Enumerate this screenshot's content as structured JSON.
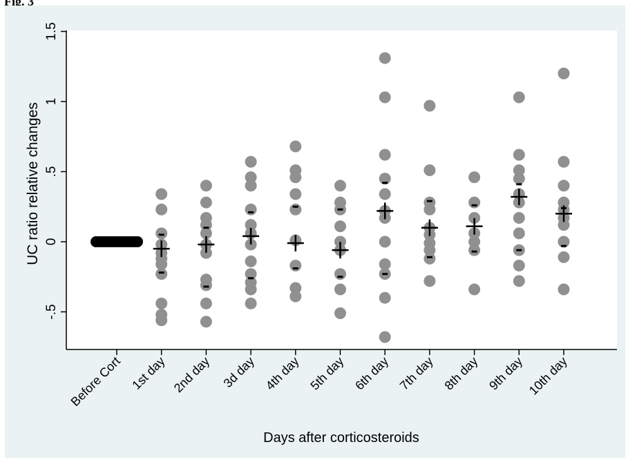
{
  "figure_label": "Fig. 3",
  "chart_data": {
    "type": "scatter",
    "title": "",
    "xlabel": "Days after corticosteroids",
    "ylabel": "UC ratio relative changes",
    "categories": [
      "Before Cort",
      "1st day",
      "2nd day",
      "3d day",
      "4th day",
      "5th day",
      "6th day",
      "7th day",
      "8th day",
      "9th day",
      "10th day"
    ],
    "ylim": [
      -0.75,
      1.5
    ],
    "yticks": [
      {
        "value": -0.5,
        "label": "-.5"
      },
      {
        "value": 0,
        "label": "0"
      },
      {
        "value": 0.5,
        "label": ".5"
      },
      {
        "value": 1,
        "label": "1"
      },
      {
        "value": 1.5,
        "label": "1.5"
      }
    ],
    "points": [
      [
        0,
        0,
        0,
        0,
        0,
        0,
        0,
        0,
        0,
        0,
        0,
        0,
        0,
        0
      ],
      [
        0.34,
        0.23,
        0.06,
        -0.02,
        -0.08,
        -0.12,
        -0.16,
        -0.23,
        -0.44,
        -0.52,
        -0.56
      ],
      [
        0.4,
        0.28,
        0.17,
        0.12,
        0.06,
        -0.02,
        -0.08,
        -0.27,
        -0.31,
        -0.44,
        -0.57
      ],
      [
        0.57,
        0.46,
        0.4,
        0.23,
        0.12,
        0.06,
        -0.02,
        -0.14,
        -0.23,
        -0.29,
        -0.34,
        -0.44
      ],
      [
        0.68,
        0.51,
        0.46,
        0.34,
        0.23,
        0.01,
        -0.17,
        -0.33,
        -0.39
      ],
      [
        0.4,
        0.28,
        0.23,
        0.11,
        0.0,
        -0.06,
        -0.23,
        -0.34,
        -0.51
      ],
      [
        1.31,
        1.03,
        0.62,
        0.45,
        0.34,
        0.22,
        0.17,
        0.0,
        -0.16,
        -0.23,
        -0.4,
        -0.68
      ],
      [
        0.97,
        0.51,
        0.28,
        0.23,
        0.1,
        0.05,
        -0.01,
        -0.06,
        -0.12,
        -0.28
      ],
      [
        0.46,
        0.28,
        0.17,
        0.06,
        0.0,
        -0.06,
        -0.34
      ],
      [
        1.03,
        0.62,
        0.51,
        0.45,
        0.34,
        0.28,
        0.17,
        0.06,
        -0.06,
        -0.17,
        -0.28
      ],
      [
        1.2,
        0.57,
        0.4,
        0.28,
        0.23,
        0.17,
        0.12,
        0.0,
        -0.11,
        -0.34
      ]
    ],
    "means": [
      0,
      -0.05,
      -0.02,
      0.04,
      -0.01,
      -0.06,
      0.22,
      0.1,
      0.11,
      0.32,
      0.2
    ],
    "ci": [
      [
        0,
        0
      ],
      [
        -0.22,
        0.05
      ],
      [
        -0.32,
        0.1
      ],
      [
        -0.26,
        0.21
      ],
      [
        -0.19,
        0.25
      ],
      [
        -0.25,
        0.23
      ],
      [
        -0.23,
        0.42
      ],
      [
        -0.11,
        0.29
      ],
      [
        -0.07,
        0.26
      ],
      [
        -0.06,
        0.41
      ],
      [
        -0.03,
        0.24
      ]
    ],
    "grid": false,
    "legend": "none",
    "colors": {
      "point": "#909090",
      "mean": "#000000",
      "plot_bg": "#ffffff",
      "outer_bg": "#eaf2f3",
      "axis": "#000000"
    }
  }
}
